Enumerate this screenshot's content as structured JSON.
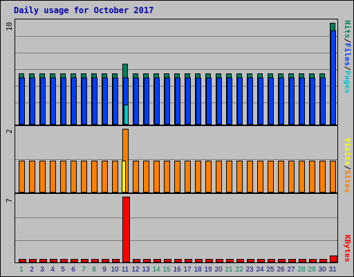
{
  "title": "Daily usage for October 2017",
  "colors": {
    "hits": "#00805c",
    "files": "#0040ff",
    "pages": "#00c8d0",
    "visits": "#ffff00",
    "sites": "#ff8000",
    "kbytes": "#ff0000",
    "weekday_label": "#000080",
    "weekend_label": "#00805c"
  },
  "legend": {
    "top": {
      "pages": "Pages",
      "files": "Files",
      "hits": "Hits",
      "sep": "/"
    },
    "middle": {
      "sites": "Sites",
      "visits": "Visits",
      "sep": "/"
    },
    "bottom": {
      "kbytes": "KBytes"
    }
  },
  "chart_data": [
    {
      "type": "bar",
      "name": "Hits / Files / Pages",
      "ymax_label": "10",
      "ylim": [
        0,
        10
      ],
      "categories": [
        "1",
        "2",
        "3",
        "4",
        "5",
        "6",
        "7",
        "8",
        "9",
        "10",
        "11",
        "12",
        "13",
        "14",
        "15",
        "16",
        "17",
        "18",
        "19",
        "20",
        "21",
        "22",
        "23",
        "24",
        "25",
        "26",
        "27",
        "28",
        "29",
        "30",
        "31"
      ],
      "series": [
        {
          "name": "Hits",
          "values": [
            5,
            5,
            5,
            5,
            5,
            5,
            5,
            5,
            5,
            5,
            6,
            5,
            5,
            5,
            5,
            5,
            5,
            5,
            5,
            5,
            5,
            5,
            5,
            5,
            5,
            5,
            5,
            5,
            5,
            5,
            10
          ]
        },
        {
          "name": "Files",
          "values": [
            5,
            5,
            5,
            5,
            5,
            5,
            5,
            5,
            5,
            5,
            5,
            5,
            5,
            5,
            5,
            5,
            5,
            5,
            5,
            5,
            5,
            5,
            5,
            5,
            5,
            5,
            5,
            5,
            5,
            5,
            10
          ]
        },
        {
          "name": "Pages",
          "values": [
            0,
            0,
            0,
            0,
            0,
            0,
            0,
            0,
            0,
            0,
            2,
            0,
            0,
            0,
            0,
            0,
            0,
            0,
            0,
            0,
            0,
            0,
            0,
            0,
            0,
            0,
            0,
            0,
            0,
            0,
            0
          ]
        }
      ]
    },
    {
      "type": "bar",
      "name": "Visits / Sites",
      "ymax_label": "2",
      "ylim": [
        0,
        2
      ],
      "categories": [
        "1",
        "2",
        "3",
        "4",
        "5",
        "6",
        "7",
        "8",
        "9",
        "10",
        "11",
        "12",
        "13",
        "14",
        "15",
        "16",
        "17",
        "18",
        "19",
        "20",
        "21",
        "22",
        "23",
        "24",
        "25",
        "26",
        "27",
        "28",
        "29",
        "30",
        "31"
      ],
      "series": [
        {
          "name": "Sites",
          "values": [
            1,
            1,
            1,
            1,
            1,
            1,
            1,
            1,
            1,
            1,
            2,
            1,
            1,
            1,
            1,
            1,
            1,
            1,
            1,
            1,
            1,
            1,
            1,
            1,
            1,
            1,
            1,
            1,
            1,
            1,
            1
          ]
        },
        {
          "name": "Visits",
          "values": [
            0,
            0,
            0,
            0,
            0,
            0,
            0,
            0,
            0,
            0,
            1,
            0,
            0,
            0,
            0,
            0,
            0,
            0,
            0,
            0,
            0,
            0,
            0,
            0,
            0,
            0,
            0,
            0,
            0,
            0,
            0
          ]
        }
      ]
    },
    {
      "type": "bar",
      "name": "KBytes",
      "ymax_label": "7",
      "ylim": [
        0,
        7
      ],
      "categories": [
        "1",
        "2",
        "3",
        "4",
        "5",
        "6",
        "7",
        "8",
        "9",
        "10",
        "11",
        "12",
        "13",
        "14",
        "15",
        "16",
        "17",
        "18",
        "19",
        "20",
        "21",
        "22",
        "23",
        "24",
        "25",
        "26",
        "27",
        "28",
        "29",
        "30",
        "31"
      ],
      "series": [
        {
          "name": "KBytes",
          "values": [
            0.4,
            0.4,
            0.4,
            0.4,
            0.4,
            0.4,
            0.4,
            0.4,
            0.4,
            0.4,
            7,
            0.4,
            0.4,
            0.4,
            0.4,
            0.4,
            0.4,
            0.4,
            0.4,
            0.4,
            0.4,
            0.4,
            0.4,
            0.4,
            0.4,
            0.4,
            0.4,
            0.4,
            0.4,
            0.4,
            0.7
          ]
        }
      ]
    }
  ],
  "weekend_days": [
    "1",
    "7",
    "8",
    "14",
    "15",
    "21",
    "22",
    "28",
    "29"
  ]
}
